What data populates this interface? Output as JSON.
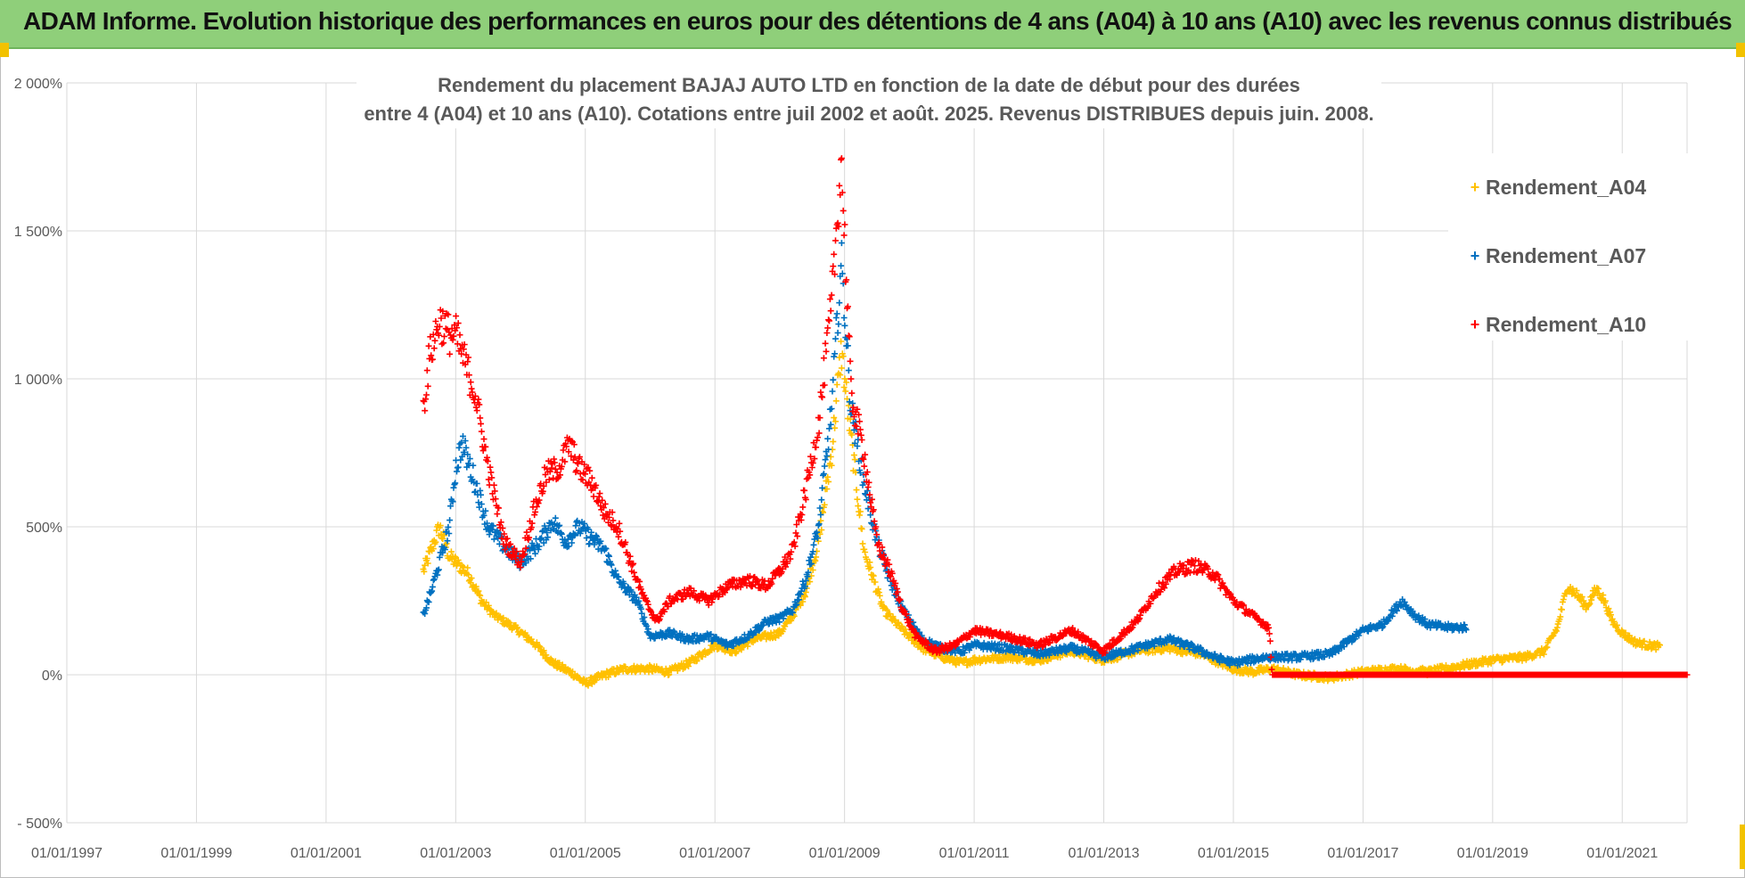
{
  "banner": {
    "title": "ADAM Informe. Evolution historique des performances en euros pour des détentions de 4 ans (A04) à 10 ans (A10) avec les revenus connus distribués"
  },
  "colors": {
    "banner": "#8fcf7a",
    "A04": "#ffc000",
    "A07": "#0070c0",
    "A10": "#ff0000",
    "grid": "#d9d9d9",
    "text": "#595959"
  },
  "chart_data": {
    "type": "scatter",
    "title_line1": "Rendement du placement BAJAJ AUTO LTD en fonction de la date de début pour des durées",
    "title_line2": "entre 4 (A04) et 10 ans (A10). Cotations entre juil 2002 et août. 2025. Revenus DISTRIBUES depuis juin. 2008.",
    "xlabel": "",
    "ylabel": "",
    "xlim": [
      1997.0,
      2022.0
    ],
    "ylim": [
      -500,
      2000
    ],
    "x_tick_labels": [
      "01/01/1997",
      "01/01/1999",
      "01/01/2001",
      "01/01/2003",
      "01/01/2005",
      "01/01/2007",
      "01/01/2009",
      "01/01/2011",
      "01/01/2013",
      "01/01/2015",
      "01/01/2017",
      "01/01/2019",
      "01/01/2021"
    ],
    "y_tick_labels": [
      "- 500%",
      "0%",
      "500%",
      "1 000%",
      "1 500%",
      "2 000%"
    ],
    "grid": true,
    "legend_position": "right",
    "marker": "+",
    "series": [
      {
        "name": "Rendement_A04",
        "color": "#ffc000",
        "x_start": 2002.5,
        "x_end": 2021.58,
        "points": [
          [
            2002.5,
            350
          ],
          [
            2002.62,
            420
          ],
          [
            2002.75,
            500
          ],
          [
            2002.9,
            400
          ],
          [
            2003.0,
            380
          ],
          [
            2003.2,
            340
          ],
          [
            2003.4,
            250
          ],
          [
            2003.6,
            200
          ],
          [
            2003.9,
            160
          ],
          [
            2004.2,
            110
          ],
          [
            2004.5,
            40
          ],
          [
            2004.8,
            5
          ],
          [
            2005.0,
            -30
          ],
          [
            2005.3,
            0
          ],
          [
            2005.6,
            20
          ],
          [
            2006.0,
            20
          ],
          [
            2006.3,
            10
          ],
          [
            2006.6,
            40
          ],
          [
            2007.0,
            100
          ],
          [
            2007.3,
            80
          ],
          [
            2007.6,
            120
          ],
          [
            2008.0,
            140
          ],
          [
            2008.2,
            200
          ],
          [
            2008.4,
            280
          ],
          [
            2008.6,
            450
          ],
          [
            2008.8,
            750
          ],
          [
            2008.95,
            1100
          ],
          [
            2009.1,
            800
          ],
          [
            2009.3,
            420
          ],
          [
            2009.6,
            220
          ],
          [
            2009.9,
            150
          ],
          [
            2010.2,
            90
          ],
          [
            2010.5,
            60
          ],
          [
            2010.8,
            40
          ],
          [
            2011.0,
            50
          ],
          [
            2011.5,
            60
          ],
          [
            2012.0,
            50
          ],
          [
            2012.5,
            80
          ],
          [
            2013.0,
            50
          ],
          [
            2013.5,
            80
          ],
          [
            2014.0,
            90
          ],
          [
            2014.5,
            70
          ],
          [
            2015.0,
            20
          ],
          [
            2015.3,
            10
          ],
          [
            2015.6,
            20
          ],
          [
            2016.0,
            0
          ],
          [
            2016.5,
            -10
          ],
          [
            2017.0,
            10
          ],
          [
            2017.5,
            20
          ],
          [
            2018.0,
            10
          ],
          [
            2018.5,
            30
          ],
          [
            2019.0,
            50
          ],
          [
            2019.5,
            60
          ],
          [
            2019.8,
            80
          ],
          [
            2020.0,
            160
          ],
          [
            2020.15,
            300
          ],
          [
            2020.3,
            270
          ],
          [
            2020.45,
            230
          ],
          [
            2020.6,
            290
          ],
          [
            2020.7,
            260
          ],
          [
            2020.85,
            180
          ],
          [
            2021.0,
            140
          ],
          [
            2021.2,
            110
          ],
          [
            2021.4,
            100
          ],
          [
            2021.58,
            95
          ]
        ]
      },
      {
        "name": "Rendement_A07",
        "color": "#0070c0",
        "x_start": 2002.5,
        "x_end": 2018.6,
        "points": [
          [
            2002.5,
            200
          ],
          [
            2002.62,
            280
          ],
          [
            2002.75,
            380
          ],
          [
            2002.9,
            500
          ],
          [
            2003.0,
            700
          ],
          [
            2003.1,
            780
          ],
          [
            2003.3,
            650
          ],
          [
            2003.5,
            500
          ],
          [
            2003.8,
            420
          ],
          [
            2004.0,
            380
          ],
          [
            2004.3,
            450
          ],
          [
            2004.5,
            520
          ],
          [
            2004.7,
            450
          ],
          [
            2004.9,
            500
          ],
          [
            2005.1,
            460
          ],
          [
            2005.3,
            420
          ],
          [
            2005.5,
            320
          ],
          [
            2005.8,
            250
          ],
          [
            2006.0,
            130
          ],
          [
            2006.3,
            140
          ],
          [
            2006.6,
            120
          ],
          [
            2006.9,
            130
          ],
          [
            2007.2,
            100
          ],
          [
            2007.5,
            130
          ],
          [
            2007.8,
            180
          ],
          [
            2008.0,
            190
          ],
          [
            2008.2,
            220
          ],
          [
            2008.4,
            320
          ],
          [
            2008.6,
            500
          ],
          [
            2008.8,
            900
          ],
          [
            2008.95,
            1400
          ],
          [
            2009.1,
            900
          ],
          [
            2009.3,
            650
          ],
          [
            2009.5,
            450
          ],
          [
            2009.7,
            320
          ],
          [
            2009.9,
            220
          ],
          [
            2010.2,
            120
          ],
          [
            2010.5,
            90
          ],
          [
            2010.8,
            80
          ],
          [
            2011.0,
            100
          ],
          [
            2011.5,
            90
          ],
          [
            2012.0,
            70
          ],
          [
            2012.5,
            90
          ],
          [
            2013.0,
            60
          ],
          [
            2013.5,
            90
          ],
          [
            2014.0,
            120
          ],
          [
            2014.4,
            90
          ],
          [
            2014.7,
            60
          ],
          [
            2015.0,
            40
          ],
          [
            2015.5,
            60
          ],
          [
            2016.0,
            60
          ],
          [
            2016.5,
            70
          ],
          [
            2017.0,
            150
          ],
          [
            2017.3,
            170
          ],
          [
            2017.6,
            250
          ],
          [
            2017.8,
            200
          ],
          [
            2018.0,
            170
          ],
          [
            2018.3,
            160
          ],
          [
            2018.6,
            160
          ]
        ]
      },
      {
        "name": "Rendement_A10",
        "color": "#ff0000",
        "x_start": 2002.5,
        "x_end": 2022.0,
        "points": [
          [
            2002.5,
            900
          ],
          [
            2002.6,
            1080
          ],
          [
            2002.75,
            1200
          ],
          [
            2002.9,
            1150
          ],
          [
            2003.0,
            1150
          ],
          [
            2003.15,
            1050
          ],
          [
            2003.3,
            950
          ],
          [
            2003.5,
            700
          ],
          [
            2003.75,
            450
          ],
          [
            2004.0,
            380
          ],
          [
            2004.2,
            550
          ],
          [
            2004.4,
            680
          ],
          [
            2004.6,
            700
          ],
          [
            2004.75,
            780
          ],
          [
            2004.9,
            700
          ],
          [
            2005.1,
            650
          ],
          [
            2005.3,
            550
          ],
          [
            2005.5,
            500
          ],
          [
            2005.7,
            380
          ],
          [
            2005.9,
            260
          ],
          [
            2006.1,
            180
          ],
          [
            2006.3,
            250
          ],
          [
            2006.6,
            280
          ],
          [
            2006.9,
            250
          ],
          [
            2007.2,
            300
          ],
          [
            2007.5,
            320
          ],
          [
            2007.8,
            300
          ],
          [
            2008.0,
            350
          ],
          [
            2008.2,
            420
          ],
          [
            2008.4,
            620
          ],
          [
            2008.6,
            850
          ],
          [
            2008.8,
            1250
          ],
          [
            2008.95,
            1750
          ],
          [
            2009.1,
            950
          ],
          [
            2009.3,
            750
          ],
          [
            2009.5,
            450
          ],
          [
            2009.7,
            350
          ],
          [
            2009.9,
            220
          ],
          [
            2010.1,
            130
          ],
          [
            2010.4,
            80
          ],
          [
            2010.7,
            100
          ],
          [
            2011.0,
            150
          ],
          [
            2011.5,
            130
          ],
          [
            2012.0,
            100
          ],
          [
            2012.5,
            150
          ],
          [
            2013.0,
            80
          ],
          [
            2013.5,
            180
          ],
          [
            2013.8,
            280
          ],
          [
            2014.1,
            350
          ],
          [
            2014.4,
            370
          ],
          [
            2014.7,
            340
          ],
          [
            2015.0,
            250
          ],
          [
            2015.3,
            200
          ],
          [
            2015.55,
            160
          ],
          [
            2015.6,
            0
          ],
          [
            2016.5,
            0
          ],
          [
            2018.0,
            0
          ],
          [
            2019.5,
            0
          ],
          [
            2021.0,
            0
          ],
          [
            2022.0,
            0
          ]
        ]
      }
    ]
  }
}
